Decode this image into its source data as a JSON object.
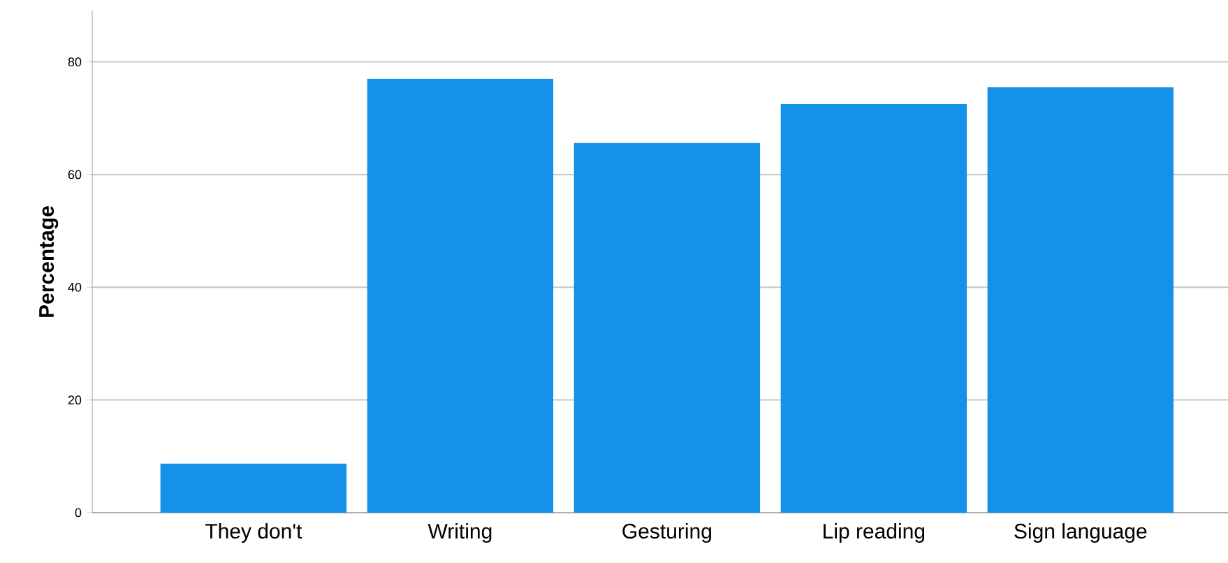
{
  "chart_data": {
    "type": "bar",
    "ylabel": "Percentage",
    "categories": [
      "They don't",
      "Writing",
      "Gesturing",
      "Lip reading",
      "Sign language"
    ],
    "values": [
      8.7,
      77.0,
      65.6,
      72.5,
      75.5
    ],
    "color": "#1591e8",
    "ylim": [
      0,
      89
    ],
    "yticks": [
      0,
      20,
      40,
      60,
      80
    ],
    "grid": "y"
  }
}
